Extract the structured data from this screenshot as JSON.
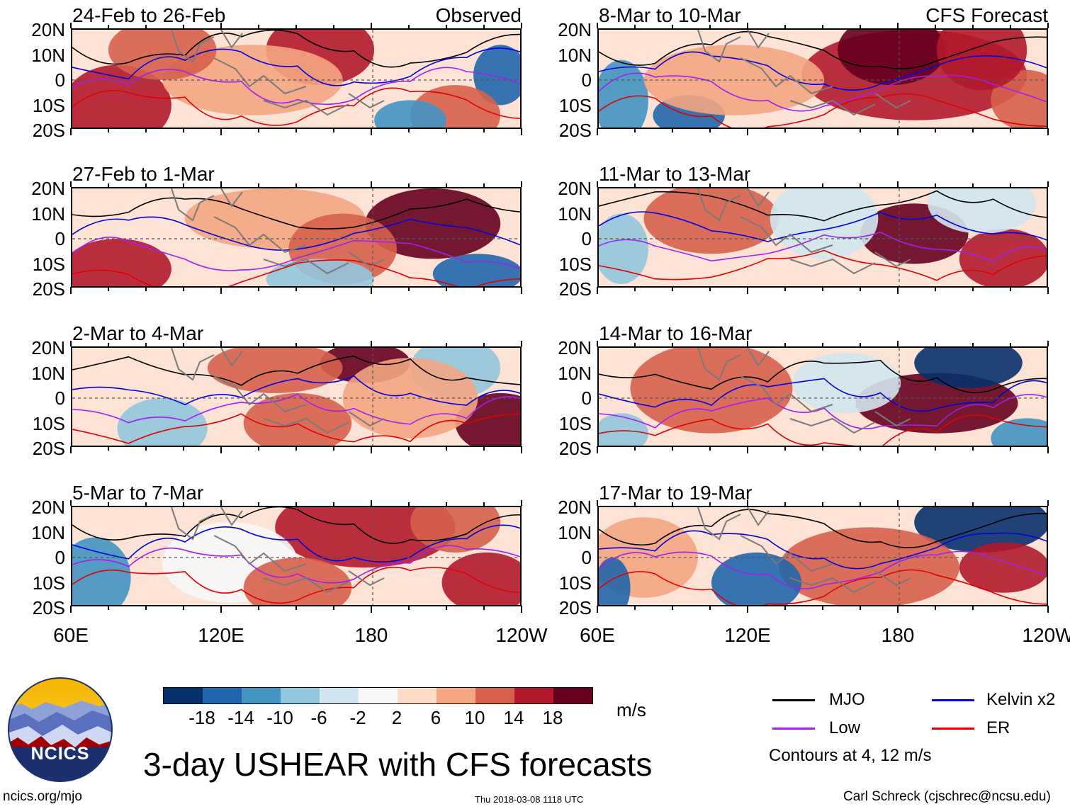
{
  "panels": [
    {
      "title": "24-Feb to 26-Feb",
      "label": "Observed",
      "col": 0,
      "row": 0
    },
    {
      "title": "8-Mar to 10-Mar",
      "label": "CFS Forecast",
      "col": 1,
      "row": 0
    },
    {
      "title": "27-Feb to 1-Mar",
      "label": "",
      "col": 0,
      "row": 1
    },
    {
      "title": "11-Mar to 13-Mar",
      "label": "",
      "col": 1,
      "row": 1
    },
    {
      "title": "2-Mar to 4-Mar",
      "label": "",
      "col": 0,
      "row": 2
    },
    {
      "title": "14-Mar to 16-Mar",
      "label": "",
      "col": 1,
      "row": 2
    },
    {
      "title": "5-Mar to 7-Mar",
      "label": "",
      "col": 0,
      "row": 3
    },
    {
      "title": "17-Mar to 19-Mar",
      "label": "",
      "col": 1,
      "row": 3
    }
  ],
  "lat_labels": [
    "20N",
    "10N",
    "0",
    "10S",
    "20S"
  ],
  "lon_labels": [
    "60E",
    "120E",
    "180",
    "120W"
  ],
  "colorbar": {
    "colors": [
      "#08306b",
      "#2166ac",
      "#4393c3",
      "#92c5de",
      "#d1e5f0",
      "#f7f7f7",
      "#fddbc7",
      "#f4a582",
      "#d6604d",
      "#b2182b",
      "#67001f"
    ],
    "labels": [
      "-18",
      "-14",
      "-10",
      "-6",
      "-2",
      "2",
      "6",
      "10",
      "14",
      "18"
    ],
    "units": "m/s"
  },
  "legend": {
    "items": [
      {
        "label": "MJO",
        "color": "#000000"
      },
      {
        "label": "Kelvin x2",
        "color": "#0000e0"
      },
      {
        "label": "Low",
        "color": "#a020f0"
      },
      {
        "label": "ER",
        "color": "#e00000"
      }
    ],
    "note": "Contours at 4, 12 m/s"
  },
  "main_title": "3-day USHEAR with CFS forecasts",
  "logo_text": "NCICS",
  "footer": {
    "left": "ncics.org/mjo",
    "center": "Thu 2018-03-08 1118 UTC",
    "right": "Carl Schreck (cjschrec@ncsu.edu)"
  }
}
